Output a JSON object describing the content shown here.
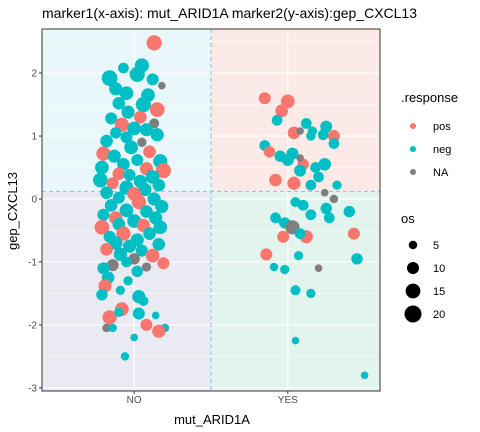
{
  "chart_data": {
    "type": "scatter",
    "title": "marker1(x-axis): mut_ARID1A  marker2(y-axis):gep_CXCL13",
    "xlabel": "mut_ARID1A",
    "ylabel": "gep_CXCL13",
    "categories": [
      "NO",
      "YES"
    ],
    "ylim": [
      -3.05,
      2.7
    ],
    "yticks": [
      -3,
      -2,
      -1,
      0,
      1,
      2
    ],
    "y_cutoff": 0.12,
    "grid": true,
    "legend_position": "right",
    "legend_response": {
      "title": ".response",
      "items": [
        {
          "label": "pos",
          "color": "#F8766D"
        },
        {
          "label": "neg",
          "color": "#00BFC4"
        },
        {
          "label": "NA",
          "color": "#7F7F7F"
        }
      ]
    },
    "legend_size": {
      "title": "os",
      "items": [
        {
          "label": "5",
          "value": 5
        },
        {
          "label": "10",
          "value": 10
        },
        {
          "label": "15",
          "value": 15
        },
        {
          "label": "20",
          "value": 20
        }
      ]
    },
    "quadrant_colors": {
      "top_left": "#E9F6FA",
      "top_right": "#FCEAE6",
      "bottom_left": "#EAEAF2",
      "bottom_right": "#E3F3EE"
    },
    "points": [
      {
        "x": 1.13,
        "y": 2.48,
        "r": "pos",
        "os": 16
      },
      {
        "x": 0.84,
        "y": 1.92,
        "r": "neg",
        "os": 17
      },
      {
        "x": 1.05,
        "y": 2.12,
        "r": "neg",
        "os": 14
      },
      {
        "x": 0.93,
        "y": 2.08,
        "r": "neg",
        "os": 8
      },
      {
        "x": 0.88,
        "y": 1.75,
        "r": "neg",
        "os": 12
      },
      {
        "x": 0.95,
        "y": 1.68,
        "r": "neg",
        "os": 13
      },
      {
        "x": 1.12,
        "y": 1.9,
        "r": "neg",
        "os": 10
      },
      {
        "x": 1.18,
        "y": 1.8,
        "r": "NA",
        "os": 4
      },
      {
        "x": 1.02,
        "y": 1.98,
        "r": "neg",
        "os": 16
      },
      {
        "x": 1.09,
        "y": 1.65,
        "r": "neg",
        "os": 13
      },
      {
        "x": 0.9,
        "y": 1.52,
        "r": "neg",
        "os": 11
      },
      {
        "x": 1.06,
        "y": 1.5,
        "r": "neg",
        "os": 16
      },
      {
        "x": 1.15,
        "y": 1.42,
        "r": "pos",
        "os": 15
      },
      {
        "x": 0.96,
        "y": 1.38,
        "r": "neg",
        "os": 12
      },
      {
        "x": 1.04,
        "y": 1.3,
        "r": "pos",
        "os": 11
      },
      {
        "x": 0.85,
        "y": 1.28,
        "r": "neg",
        "os": 10
      },
      {
        "x": 0.92,
        "y": 1.18,
        "r": "pos",
        "os": 14
      },
      {
        "x": 1.13,
        "y": 1.2,
        "r": "NA",
        "os": 7
      },
      {
        "x": 1.0,
        "y": 1.12,
        "r": "neg",
        "os": 13
      },
      {
        "x": 0.88,
        "y": 1.05,
        "r": "neg",
        "os": 9
      },
      {
        "x": 1.08,
        "y": 1.1,
        "r": "neg",
        "os": 12
      },
      {
        "x": 0.95,
        "y": 0.98,
        "r": "neg",
        "os": 10
      },
      {
        "x": 1.15,
        "y": 1.02,
        "r": "neg",
        "os": 12
      },
      {
        "x": 0.82,
        "y": 0.92,
        "r": "neg",
        "os": 11
      },
      {
        "x": 1.05,
        "y": 0.9,
        "r": "NA",
        "os": 6
      },
      {
        "x": 0.98,
        "y": 0.82,
        "r": "neg",
        "os": 13
      },
      {
        "x": 0.8,
        "y": 0.72,
        "r": "pos",
        "os": 14
      },
      {
        "x": 1.1,
        "y": 0.75,
        "r": "pos",
        "os": 11
      },
      {
        "x": 0.87,
        "y": 0.68,
        "r": "neg",
        "os": 12
      },
      {
        "x": 1.02,
        "y": 0.62,
        "r": "neg",
        "os": 10
      },
      {
        "x": 1.17,
        "y": 0.6,
        "r": "neg",
        "os": 14
      },
      {
        "x": 0.93,
        "y": 0.55,
        "r": "neg",
        "os": 11
      },
      {
        "x": 0.79,
        "y": 0.5,
        "r": "neg",
        "os": 13
      },
      {
        "x": 1.08,
        "y": 0.48,
        "r": "pos",
        "os": 12
      },
      {
        "x": 1.19,
        "y": 0.45,
        "r": "pos",
        "os": 16
      },
      {
        "x": 0.9,
        "y": 0.4,
        "r": "pos",
        "os": 11
      },
      {
        "x": 0.97,
        "y": 0.38,
        "r": "neg",
        "os": 10
      },
      {
        "x": 1.12,
        "y": 0.35,
        "r": "neg",
        "os": 13
      },
      {
        "x": 0.78,
        "y": 0.3,
        "r": "neg",
        "os": 15
      },
      {
        "x": 1.04,
        "y": 0.28,
        "r": "neg",
        "os": 12
      },
      {
        "x": 0.86,
        "y": 0.25,
        "r": "pos",
        "os": 10
      },
      {
        "x": 1.16,
        "y": 0.22,
        "r": "neg",
        "os": 11
      },
      {
        "x": 0.95,
        "y": 0.18,
        "r": "neg",
        "os": 14
      },
      {
        "x": 1.07,
        "y": 0.15,
        "r": "neg",
        "os": 12
      },
      {
        "x": 0.82,
        "y": 0.1,
        "r": "neg",
        "os": 11
      },
      {
        "x": 1.0,
        "y": 0.08,
        "r": "pos",
        "os": 13
      },
      {
        "x": 0.9,
        "y": 0.02,
        "r": "neg",
        "os": 10
      },
      {
        "x": 1.13,
        "y": 0.0,
        "r": "neg",
        "os": 12
      },
      {
        "x": 1.03,
        "y": -0.05,
        "r": "pos",
        "os": 14
      },
      {
        "x": 0.85,
        "y": -0.1,
        "r": "neg",
        "os": 11
      },
      {
        "x": 1.18,
        "y": -0.12,
        "r": "neg",
        "os": 12
      },
      {
        "x": 0.95,
        "y": -0.18,
        "r": "neg",
        "os": 13
      },
      {
        "x": 1.08,
        "y": -0.2,
        "r": "neg",
        "os": 11
      },
      {
        "x": 0.8,
        "y": -0.25,
        "r": "neg",
        "os": 10
      },
      {
        "x": 0.88,
        "y": -0.3,
        "r": "pos",
        "os": 12
      },
      {
        "x": 1.14,
        "y": -0.3,
        "r": "neg",
        "os": 12
      },
      {
        "x": 1.0,
        "y": -0.35,
        "r": "neg",
        "os": 13
      },
      {
        "x": 0.9,
        "y": -0.4,
        "r": "neg",
        "os": 11
      },
      {
        "x": 1.06,
        "y": -0.42,
        "r": "pos",
        "os": 12
      },
      {
        "x": 0.79,
        "y": -0.45,
        "r": "pos",
        "os": 15
      },
      {
        "x": 1.17,
        "y": -0.45,
        "r": "neg",
        "os": 13
      },
      {
        "x": 0.93,
        "y": -0.55,
        "r": "pos",
        "os": 14
      },
      {
        "x": 1.1,
        "y": -0.55,
        "r": "neg",
        "os": 11
      },
      {
        "x": 0.84,
        "y": -0.6,
        "r": "neg",
        "os": 10
      },
      {
        "x": 1.02,
        "y": -0.65,
        "r": "neg",
        "os": 12
      },
      {
        "x": 0.88,
        "y": -0.7,
        "r": "neg",
        "os": 13
      },
      {
        "x": 1.16,
        "y": -0.72,
        "r": "neg",
        "os": 11
      },
      {
        "x": 0.97,
        "y": -0.75,
        "r": "neg",
        "os": 12
      },
      {
        "x": 0.82,
        "y": -0.8,
        "r": "pos",
        "os": 11
      },
      {
        "x": 1.05,
        "y": -0.82,
        "r": "neg",
        "os": 10
      },
      {
        "x": 0.91,
        "y": -0.88,
        "r": "neg",
        "os": 12
      },
      {
        "x": 1.12,
        "y": -0.9,
        "r": "pos",
        "os": 13
      },
      {
        "x": 1.0,
        "y": -0.95,
        "r": "NA",
        "os": 9
      },
      {
        "x": 1.19,
        "y": -1.02,
        "r": "pos",
        "os": 10
      },
      {
        "x": 0.86,
        "y": -1.05,
        "r": "NA",
        "os": 10
      },
      {
        "x": 0.95,
        "y": -1.0,
        "r": "neg",
        "os": 8
      },
      {
        "x": 1.08,
        "y": -1.08,
        "r": "NA",
        "os": 6
      },
      {
        "x": 0.8,
        "y": -1.1,
        "r": "neg",
        "os": 10
      },
      {
        "x": 1.02,
        "y": -1.15,
        "r": "neg",
        "os": 9
      },
      {
        "x": 0.83,
        "y": -1.25,
        "r": "neg",
        "os": 11
      },
      {
        "x": 0.81,
        "y": -1.38,
        "r": "pos",
        "os": 12
      },
      {
        "x": 0.96,
        "y": -1.3,
        "r": "neg",
        "os": 6
      },
      {
        "x": 0.91,
        "y": -1.45,
        "r": "neg",
        "os": 6
      },
      {
        "x": 0.79,
        "y": -1.52,
        "r": "neg",
        "os": 9
      },
      {
        "x": 1.03,
        "y": -1.55,
        "r": "neg",
        "os": 12
      },
      {
        "x": 1.06,
        "y": -1.62,
        "r": "neg",
        "os": 7
      },
      {
        "x": 0.92,
        "y": -1.75,
        "r": "pos",
        "os": 13
      },
      {
        "x": 1.03,
        "y": -1.82,
        "r": "neg",
        "os": 10
      },
      {
        "x": 0.84,
        "y": -1.88,
        "r": "pos",
        "os": 14
      },
      {
        "x": 0.9,
        "y": -1.8,
        "r": "neg",
        "os": 6
      },
      {
        "x": 1.14,
        "y": -1.85,
        "r": "neg",
        "os": 4
      },
      {
        "x": 1.08,
        "y": -2.0,
        "r": "pos",
        "os": 10
      },
      {
        "x": 1.2,
        "y": -2.05,
        "r": "neg",
        "os": 5
      },
      {
        "x": 0.82,
        "y": -2.05,
        "r": "NA",
        "os": 5
      },
      {
        "x": 1.16,
        "y": -2.1,
        "r": "pos",
        "os": 12
      },
      {
        "x": 0.86,
        "y": -2.05,
        "r": "neg",
        "os": 5
      },
      {
        "x": 1.0,
        "y": -2.2,
        "r": "neg",
        "os": 4
      },
      {
        "x": 0.94,
        "y": -2.5,
        "r": "neg",
        "os": 5
      },
      {
        "x": 1.85,
        "y": 1.6,
        "r": "pos",
        "os": 10
      },
      {
        "x": 2.0,
        "y": 1.55,
        "r": "pos",
        "os": 13
      },
      {
        "x": 1.96,
        "y": 1.4,
        "r": "pos",
        "os": 11
      },
      {
        "x": 1.93,
        "y": 1.25,
        "r": "neg",
        "os": 8
      },
      {
        "x": 2.12,
        "y": 1.2,
        "r": "neg",
        "os": 8
      },
      {
        "x": 2.16,
        "y": 1.08,
        "r": "neg",
        "os": 6
      },
      {
        "x": 2.04,
        "y": 1.05,
        "r": "pos",
        "os": 11
      },
      {
        "x": 2.25,
        "y": 1.15,
        "r": "neg",
        "os": 10
      },
      {
        "x": 2.08,
        "y": 1.08,
        "r": "NA",
        "os": 4
      },
      {
        "x": 2.15,
        "y": 1.0,
        "r": "neg",
        "os": 6
      },
      {
        "x": 2.3,
        "y": 1.0,
        "r": "pos",
        "os": 10
      },
      {
        "x": 2.3,
        "y": 0.88,
        "r": "neg",
        "os": 8
      },
      {
        "x": 2.23,
        "y": 1.02,
        "r": "neg",
        "os": 8
      },
      {
        "x": 1.85,
        "y": 0.85,
        "r": "neg",
        "os": 8
      },
      {
        "x": 1.88,
        "y": 0.75,
        "r": "pos",
        "os": 9
      },
      {
        "x": 1.95,
        "y": 0.68,
        "r": "neg",
        "os": 9
      },
      {
        "x": 2.0,
        "y": 0.62,
        "r": "neg",
        "os": 10
      },
      {
        "x": 2.03,
        "y": 0.72,
        "r": "neg",
        "os": 10
      },
      {
        "x": 2.1,
        "y": 0.55,
        "r": "pos",
        "os": 9
      },
      {
        "x": 2.18,
        "y": 0.5,
        "r": "neg",
        "os": 8
      },
      {
        "x": 2.08,
        "y": 0.45,
        "r": "neg",
        "os": 10
      },
      {
        "x": 2.2,
        "y": 0.35,
        "r": "neg",
        "os": 8
      },
      {
        "x": 2.24,
        "y": 0.55,
        "r": "neg",
        "os": 11
      },
      {
        "x": 2.08,
        "y": 0.65,
        "r": "NA",
        "os": 4
      },
      {
        "x": 1.92,
        "y": 0.3,
        "r": "pos",
        "os": 11
      },
      {
        "x": 2.04,
        "y": 0.25,
        "r": "pos",
        "os": 12
      },
      {
        "x": 2.15,
        "y": 0.22,
        "r": "neg",
        "os": 8
      },
      {
        "x": 2.24,
        "y": 0.1,
        "r": "NA",
        "os": 4
      },
      {
        "x": 2.3,
        "y": 0.0,
        "r": "NA",
        "os": 5
      },
      {
        "x": 2.32,
        "y": 0.22,
        "r": "neg",
        "os": 6
      },
      {
        "x": 2.05,
        "y": -0.05,
        "r": "neg",
        "os": 7
      },
      {
        "x": 2.1,
        "y": -0.1,
        "r": "neg",
        "os": 8
      },
      {
        "x": 2.25,
        "y": -0.15,
        "r": "neg",
        "os": 9
      },
      {
        "x": 2.15,
        "y": -0.25,
        "r": "neg",
        "os": 8
      },
      {
        "x": 1.92,
        "y": -0.3,
        "r": "neg",
        "os": 8
      },
      {
        "x": 2.27,
        "y": -0.3,
        "r": "neg",
        "os": 8
      },
      {
        "x": 2.4,
        "y": -0.2,
        "r": "neg",
        "os": 9
      },
      {
        "x": 1.98,
        "y": -0.38,
        "r": "neg",
        "os": 9
      },
      {
        "x": 2.03,
        "y": -0.45,
        "r": "NA",
        "os": 14
      },
      {
        "x": 2.12,
        "y": -0.6,
        "r": "pos",
        "os": 12
      },
      {
        "x": 2.43,
        "y": -0.55,
        "r": "pos",
        "os": 10
      },
      {
        "x": 2.08,
        "y": -0.55,
        "r": "neg",
        "os": 8
      },
      {
        "x": 1.97,
        "y": -0.6,
        "r": "pos",
        "os": 10
      },
      {
        "x": 1.86,
        "y": -0.88,
        "r": "pos",
        "os": 10
      },
      {
        "x": 2.07,
        "y": -0.9,
        "r": "neg",
        "os": 6
      },
      {
        "x": 2.45,
        "y": -0.95,
        "r": "neg",
        "os": 9
      },
      {
        "x": 2.2,
        "y": -1.1,
        "r": "NA",
        "os": 4
      },
      {
        "x": 1.98,
        "y": -1.12,
        "r": "neg",
        "os": 6
      },
      {
        "x": 1.91,
        "y": -1.08,
        "r": "neg",
        "os": 5
      },
      {
        "x": 2.05,
        "y": -1.45,
        "r": "neg",
        "os": 7
      },
      {
        "x": 2.15,
        "y": -1.5,
        "r": "neg",
        "os": 6
      },
      {
        "x": 2.05,
        "y": -2.25,
        "r": "neg",
        "os": 4
      },
      {
        "x": 2.5,
        "y": -2.8,
        "r": "neg",
        "os": 4
      }
    ]
  }
}
